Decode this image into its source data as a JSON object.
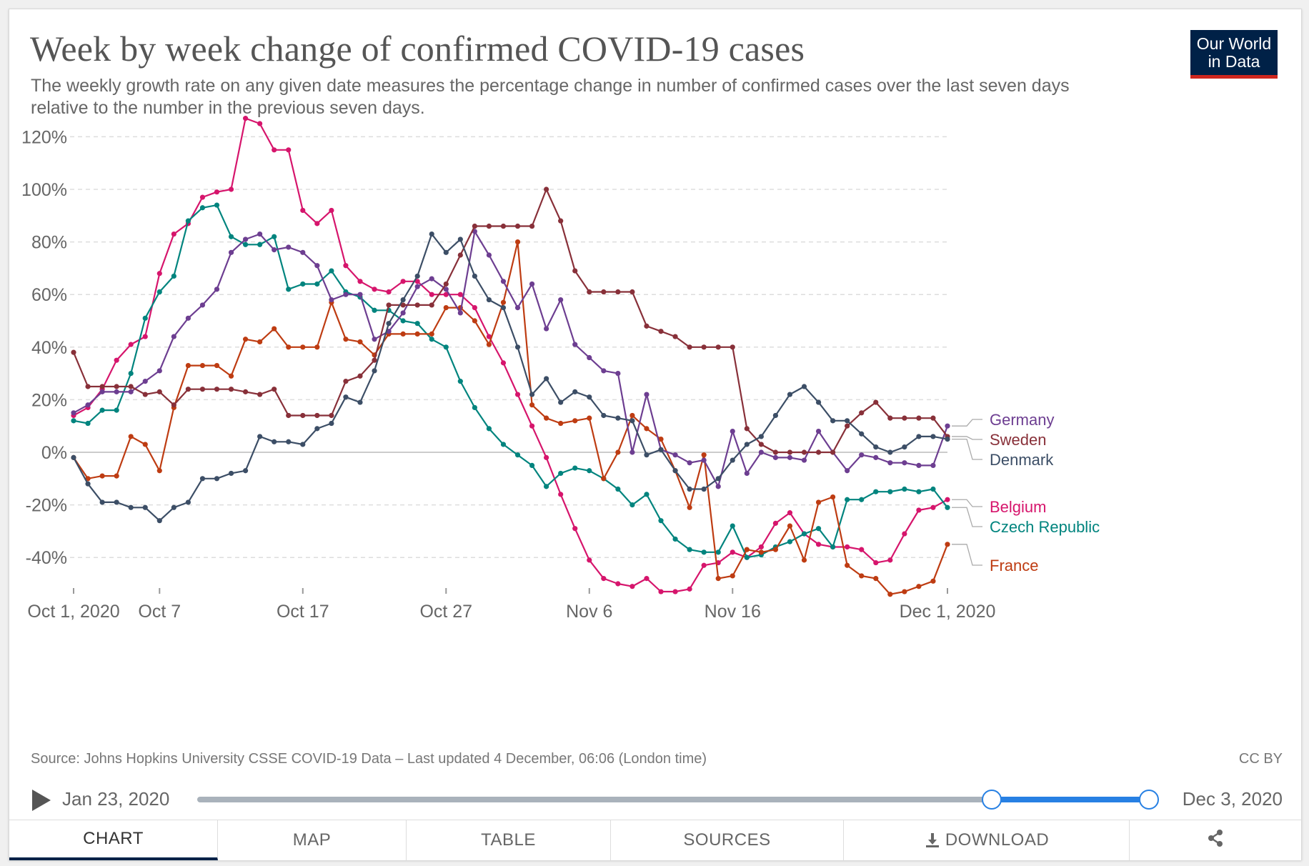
{
  "header": {
    "title": "Week by week change of confirmed COVID-19 cases",
    "subtitle": "The weekly growth rate on any given date measures the percentage change in number of confirmed cases over the last seven days relative to the number in the previous seven days.",
    "logo_line1": "Our World",
    "logo_line2": "in Data"
  },
  "footer": {
    "source": "Source: Johns Hopkins University CSSE COVID-19 Data – Last updated 4 December, 06:06 (London time)",
    "license": "CC BY"
  },
  "timeline": {
    "start_label": "Jan 23, 2020",
    "end_label": "Dec 3, 2020",
    "selected_start_fraction": 0.8345,
    "selected_end_fraction": 1.0
  },
  "tabs": [
    {
      "label": "CHART",
      "active": true
    },
    {
      "label": "MAP",
      "active": false
    },
    {
      "label": "TABLE",
      "active": false
    },
    {
      "label": "SOURCES",
      "active": false
    },
    {
      "label": "DOWNLOAD",
      "active": false,
      "icon": "download-icon"
    },
    {
      "label": "",
      "active": false,
      "icon": "share-icon"
    }
  ],
  "chart_data": {
    "type": "line",
    "title": "Week by week change of confirmed COVID-19 cases",
    "xlabel": "",
    "ylabel": "",
    "x_start": "Oct 1, 2020",
    "x_end": "Dec 1, 2020",
    "x_ticks": [
      {
        "label": "Oct 1, 2020",
        "day": 0
      },
      {
        "label": "Oct 7",
        "day": 6
      },
      {
        "label": "Oct 17",
        "day": 16
      },
      {
        "label": "Oct 27",
        "day": 26
      },
      {
        "label": "Nov 6",
        "day": 36
      },
      {
        "label": "Nov 16",
        "day": 46
      },
      {
        "label": "Dec 1, 2020",
        "day": 61
      }
    ],
    "y_ticks": [
      120,
      100,
      80,
      60,
      40,
      20,
      0,
      -20,
      -40
    ],
    "y_tick_labels": [
      "120%",
      "100%",
      "80%",
      "60%",
      "40%",
      "20%",
      "0%",
      "-20%",
      "-40%"
    ],
    "ylim": [
      -53,
      130
    ],
    "grid": "horizontal dashed",
    "legend": "right, labels at line ends",
    "series": [
      {
        "name": "Belgium",
        "color": "#d6156c",
        "values": [
          14,
          17,
          24,
          35,
          41,
          44,
          68,
          83,
          87,
          97,
          99,
          100,
          127,
          125,
          115,
          115,
          92,
          87,
          92,
          71,
          65,
          62,
          61,
          65,
          65,
          60,
          60,
          60,
          55,
          44,
          34,
          22,
          10,
          -2,
          -16,
          -29,
          -41,
          -48,
          -50,
          -51,
          -48,
          -53,
          -53,
          -52,
          -43,
          -42,
          -38,
          -40,
          -36,
          -27,
          -23,
          -31,
          -35,
          -36,
          -36,
          -37,
          -42,
          -41,
          -31,
          -22,
          -21,
          -18
        ]
      },
      {
        "name": "Czech Republic",
        "color": "#00847e",
        "values": [
          12,
          11,
          16,
          16,
          30,
          51,
          61,
          67,
          88,
          93,
          94,
          82,
          79,
          79,
          82,
          62,
          64,
          64,
          69,
          61,
          59,
          54,
          54,
          50,
          49,
          43,
          40,
          27,
          17,
          9,
          3,
          -1,
          -5,
          -13,
          -8,
          -6,
          -7,
          -10,
          -14,
          -20,
          -16,
          -26,
          -33,
          -37,
          -38,
          -38,
          -28,
          -40,
          -39,
          -36,
          -34,
          -31,
          -29,
          -36,
          -18,
          -18,
          -15,
          -15,
          -14,
          -15,
          -14,
          -21
        ]
      },
      {
        "name": "France",
        "color": "#be3c12",
        "values": [
          -2,
          -10,
          -9,
          -9,
          6,
          3,
          -7,
          17,
          33,
          33,
          33,
          29,
          43,
          42,
          47,
          40,
          40,
          40,
          57,
          43,
          42,
          37,
          45,
          45,
          45,
          45,
          55,
          55,
          50,
          41,
          57,
          80,
          18,
          13,
          11,
          12,
          13,
          -10,
          0,
          14,
          9,
          5,
          -7,
          -21,
          -1,
          -48,
          -47,
          -37,
          -38,
          -37,
          -28,
          -41,
          -19,
          -17,
          -43,
          -47,
          -48,
          -54,
          -53,
          -51,
          -49,
          -35
        ]
      },
      {
        "name": "Germany",
        "color": "#6d3e91",
        "values": [
          15,
          18,
          23,
          23,
          23,
          27,
          31,
          44,
          51,
          56,
          62,
          76,
          81,
          83,
          77,
          78,
          76,
          71,
          58,
          60,
          60,
          43,
          46,
          53,
          63,
          66,
          62,
          53,
          84,
          75,
          65,
          55,
          64,
          47,
          58,
          41,
          36,
          31,
          30,
          0,
          22,
          1,
          -1,
          -4,
          -3,
          -13,
          8,
          -8,
          0,
          -2,
          -2,
          -3,
          8,
          0,
          -7,
          -1,
          -2,
          -4,
          -4,
          -5,
          -5,
          10
        ]
      },
      {
        "name": "Sweden",
        "color": "#883039",
        "values": [
          38,
          25,
          25,
          25,
          25,
          22,
          23,
          18,
          24,
          24,
          24,
          24,
          23,
          22,
          24,
          14,
          14,
          14,
          14,
          27,
          29,
          35,
          56,
          56,
          56,
          56,
          64,
          75,
          86,
          86,
          86,
          86,
          86,
          100,
          88,
          69,
          61,
          61,
          61,
          61,
          48,
          46,
          44,
          40,
          40,
          40,
          40,
          9,
          3,
          0,
          0,
          0,
          0,
          0,
          10,
          15,
          19,
          13,
          13,
          13,
          13,
          6
        ]
      },
      {
        "name": "Denmark",
        "color": "#3c4e66",
        "values": [
          -2,
          -12,
          -19,
          -19,
          -21,
          -21,
          -26,
          -21,
          -19,
          -10,
          -10,
          -8,
          -7,
          6,
          4,
          4,
          3,
          9,
          11,
          21,
          19,
          31,
          49,
          58,
          67,
          83,
          76,
          81,
          67,
          58,
          55,
          40,
          22,
          28,
          19,
          23,
          21,
          14,
          13,
          12,
          -1,
          1,
          -7,
          -14,
          -14,
          -10,
          -3,
          3,
          6,
          14,
          22,
          25,
          19,
          12,
          12,
          7,
          2,
          0,
          2,
          6,
          6,
          5
        ]
      }
    ]
  }
}
